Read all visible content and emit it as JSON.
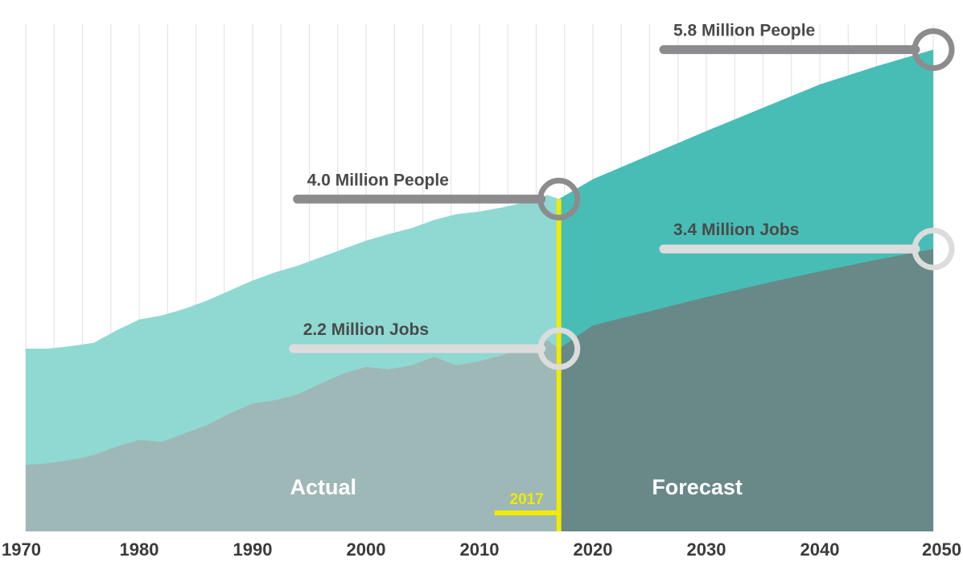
{
  "chart_data": {
    "type": "area",
    "x_ticks": [
      "1970",
      "1980",
      "1990",
      "2000",
      "2010",
      "2020",
      "2030",
      "2040",
      "2050"
    ],
    "xlim": [
      1970,
      2050
    ],
    "ylim": [
      0,
      6.3
    ],
    "grid": "vertical lines every 2.5 years",
    "split_year": 2017,
    "split_label": "2017",
    "region_labels": {
      "actual": "Actual",
      "forecast": "Forecast"
    },
    "colors": {
      "people_actual": "#8fd9d2",
      "people_forecast": "#48bdb6",
      "jobs_actual": "#9eb8b7",
      "jobs_forecast": "#688987",
      "split_line": "#f2ea00",
      "people_callout": "#8c8c8e",
      "jobs_callout": "#dcdcdc"
    },
    "series": [
      {
        "key": "people",
        "x": [
          1970,
          1972,
          1974,
          1976,
          1978,
          1980,
          1982,
          1984,
          1986,
          1988,
          1990,
          1992,
          1994,
          1996,
          1998,
          2000,
          2002,
          2004,
          2006,
          2008,
          2010,
          2012,
          2014,
          2016,
          2017,
          2020,
          2025,
          2030,
          2035,
          2040,
          2045,
          2050
        ],
        "values": [
          2.2,
          2.2,
          2.23,
          2.27,
          2.42,
          2.55,
          2.6,
          2.68,
          2.78,
          2.9,
          3.02,
          3.12,
          3.2,
          3.3,
          3.4,
          3.5,
          3.58,
          3.65,
          3.75,
          3.82,
          3.85,
          3.9,
          3.96,
          4.05,
          4.0,
          4.24,
          4.53,
          4.82,
          5.1,
          5.38,
          5.6,
          5.8
        ]
      },
      {
        "key": "jobs",
        "x": [
          1970,
          1972,
          1974,
          1976,
          1978,
          1980,
          1982,
          1984,
          1986,
          1988,
          1990,
          1992,
          1994,
          1996,
          1998,
          2000,
          2002,
          2004,
          2006,
          2008,
          2010,
          2012,
          2014,
          2016,
          2017,
          2020,
          2025,
          2030,
          2035,
          2040,
          2045,
          2050
        ],
        "values": [
          0.8,
          0.82,
          0.86,
          0.92,
          1.02,
          1.1,
          1.08,
          1.18,
          1.28,
          1.42,
          1.54,
          1.58,
          1.65,
          1.78,
          1.9,
          1.98,
          1.95,
          2.0,
          2.1,
          2.0,
          2.05,
          2.12,
          2.22,
          2.3,
          2.2,
          2.48,
          2.65,
          2.82,
          2.98,
          3.13,
          3.27,
          3.4
        ]
      }
    ],
    "annotations": [
      {
        "key": "people_2017",
        "text": "4.0 Million People",
        "x": 2017,
        "y": 4.0
      },
      {
        "key": "jobs_2017",
        "text": "2.2 Million Jobs",
        "x": 2017,
        "y": 2.2
      },
      {
        "key": "people_2050",
        "text": "5.8 Million People",
        "x": 2050,
        "y": 5.8
      },
      {
        "key": "jobs_2050",
        "text": "3.4 Million Jobs",
        "x": 2050,
        "y": 3.4
      }
    ]
  }
}
